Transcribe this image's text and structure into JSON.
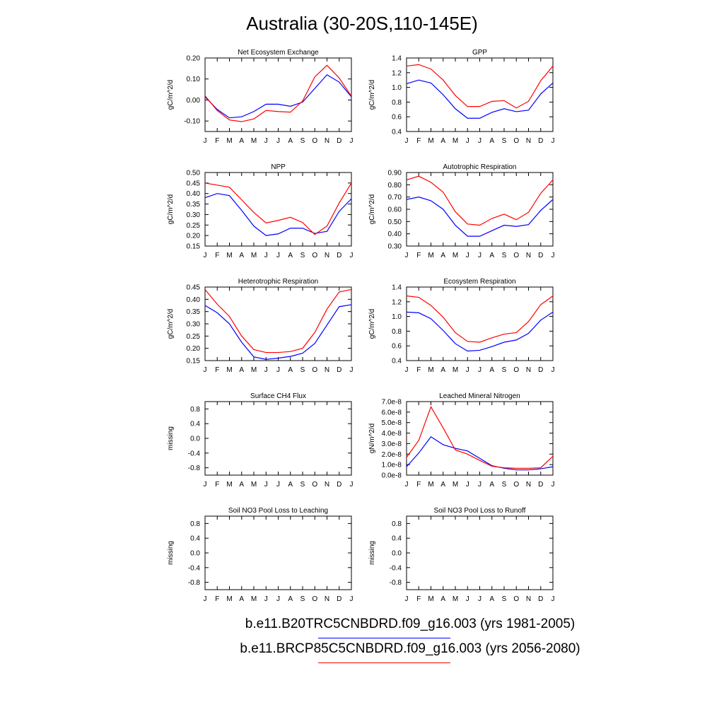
{
  "title": "Australia (30-20S,110-145E)",
  "months": [
    "J",
    "F",
    "M",
    "A",
    "M",
    "J",
    "J",
    "A",
    "S",
    "O",
    "N",
    "D",
    "J"
  ],
  "colors": {
    "control": "#0000ff",
    "future": "#ff0000",
    "axis": "#000000"
  },
  "legend": [
    {
      "label": "b.e11.B20TRC5CNBDRD.f09_g16.003 (yrs 1981-2005)",
      "color": "#0000ff"
    },
    {
      "label": "b.e11.BRCP85C5CNBDRD.f09_g16.003 (yrs 2056-2080)",
      "color": "#ff0000"
    }
  ],
  "chart_data": [
    {
      "type": "line",
      "title": "Net Ecosystem Exchange",
      "ylabel": "gC/m^2/d",
      "ylim": [
        -0.15,
        0.2
      ],
      "yticks": [
        -0.1,
        0.0,
        0.1,
        0.2
      ],
      "ytick_labels": [
        "-0.10",
        "0.00",
        "0.10",
        "0.20"
      ],
      "series": [
        {
          "values": [
            0.015,
            -0.045,
            -0.085,
            -0.08,
            -0.055,
            -0.02,
            -0.02,
            -0.03,
            -0.01,
            0.055,
            0.12,
            0.085,
            0.015
          ]
        },
        {
          "values": [
            0.02,
            -0.05,
            -0.095,
            -0.103,
            -0.09,
            -0.05,
            -0.055,
            -0.058,
            -0.005,
            0.11,
            0.165,
            0.105,
            0.018
          ]
        }
      ]
    },
    {
      "type": "line",
      "title": "GPP",
      "ylabel": "gC/m^2/d",
      "ylim": [
        0.4,
        1.4
      ],
      "yticks": [
        0.4,
        0.6,
        0.8,
        1.0,
        1.2,
        1.4
      ],
      "ytick_labels": [
        "0.4",
        "0.6",
        "0.8",
        "1.0",
        "1.2",
        "1.4"
      ],
      "series": [
        {
          "values": [
            1.05,
            1.1,
            1.06,
            0.9,
            0.71,
            0.58,
            0.58,
            0.66,
            0.71,
            0.67,
            0.69,
            0.91,
            1.06
          ]
        },
        {
          "values": [
            1.29,
            1.31,
            1.25,
            1.1,
            0.89,
            0.74,
            0.74,
            0.81,
            0.82,
            0.72,
            0.81,
            1.09,
            1.29
          ]
        }
      ]
    },
    {
      "type": "line",
      "title": "NPP",
      "ylabel": "gC/m^2/d",
      "ylim": [
        0.15,
        0.5
      ],
      "yticks": [
        0.15,
        0.2,
        0.25,
        0.3,
        0.35,
        0.4,
        0.45,
        0.5
      ],
      "ytick_labels": [
        "0.15",
        "0.20",
        "0.25",
        "0.30",
        "0.35",
        "0.40",
        "0.45",
        "0.50"
      ],
      "series": [
        {
          "values": [
            0.38,
            0.4,
            0.39,
            0.32,
            0.245,
            0.2,
            0.208,
            0.235,
            0.235,
            0.21,
            0.22,
            0.315,
            0.375
          ]
        },
        {
          "values": [
            0.45,
            0.44,
            0.43,
            0.37,
            0.31,
            0.26,
            0.272,
            0.287,
            0.262,
            0.205,
            0.245,
            0.355,
            0.45
          ]
        }
      ]
    },
    {
      "type": "line",
      "title": "Autotrophic Respiration",
      "ylabel": "gC/m^2/d",
      "ylim": [
        0.3,
        0.9
      ],
      "yticks": [
        0.3,
        0.4,
        0.5,
        0.6,
        0.7,
        0.8,
        0.9
      ],
      "ytick_labels": [
        "0.30",
        "0.40",
        "0.50",
        "0.60",
        "0.70",
        "0.80",
        "0.90"
      ],
      "series": [
        {
          "values": [
            0.68,
            0.7,
            0.67,
            0.6,
            0.47,
            0.38,
            0.38,
            0.425,
            0.47,
            0.46,
            0.475,
            0.59,
            0.68
          ]
        },
        {
          "values": [
            0.84,
            0.87,
            0.82,
            0.74,
            0.58,
            0.48,
            0.47,
            0.525,
            0.56,
            0.515,
            0.575,
            0.73,
            0.84
          ]
        }
      ]
    },
    {
      "type": "line",
      "title": "Heterotrophic Respiration",
      "ylabel": "gC/m^2/d",
      "ylim": [
        0.15,
        0.45
      ],
      "yticks": [
        0.15,
        0.2,
        0.25,
        0.3,
        0.35,
        0.4,
        0.45
      ],
      "ytick_labels": [
        "0.15",
        "0.20",
        "0.25",
        "0.30",
        "0.35",
        "0.40",
        "0.45"
      ],
      "series": [
        {
          "values": [
            0.375,
            0.345,
            0.3,
            0.225,
            0.165,
            0.155,
            0.16,
            0.167,
            0.18,
            0.22,
            0.295,
            0.37,
            0.378
          ]
        },
        {
          "values": [
            0.44,
            0.38,
            0.33,
            0.25,
            0.195,
            0.183,
            0.183,
            0.187,
            0.2,
            0.265,
            0.36,
            0.43,
            0.44
          ]
        }
      ]
    },
    {
      "type": "line",
      "title": "Ecosystem Respiration",
      "ylabel": "gC/m^2/d",
      "ylim": [
        0.4,
        1.4
      ],
      "yticks": [
        0.4,
        0.6,
        0.8,
        1.0,
        1.2,
        1.4
      ],
      "ytick_labels": [
        "0.4",
        "0.6",
        "0.8",
        "1.0",
        "1.2",
        "1.4"
      ],
      "series": [
        {
          "values": [
            1.06,
            1.05,
            0.97,
            0.81,
            0.63,
            0.53,
            0.54,
            0.59,
            0.65,
            0.68,
            0.77,
            0.95,
            1.06
          ]
        },
        {
          "values": [
            1.28,
            1.26,
            1.15,
            0.99,
            0.78,
            0.66,
            0.65,
            0.71,
            0.76,
            0.78,
            0.93,
            1.16,
            1.28
          ]
        }
      ]
    },
    {
      "type": "line",
      "title": "Surface CH4 Flux",
      "ylabel": "missing",
      "ylim": [
        -1.0,
        1.0
      ],
      "yticks": [
        -0.8,
        -0.4,
        0.0,
        0.4,
        0.8
      ],
      "ytick_labels": [
        "-0.8",
        "-0.4",
        "0.0",
        "0.4",
        "0.8"
      ],
      "series": []
    },
    {
      "type": "line",
      "title": "Leached Mineral Nitrogen",
      "ylabel": "gN/m^2/d",
      "ylim": [
        0.0,
        7e-08
      ],
      "yticks": [
        0.0,
        1e-08,
        2e-08,
        3e-08,
        4e-08,
        5e-08,
        6e-08,
        7e-08
      ],
      "ytick_labels": [
        "0.0e-8",
        "1.0e-8",
        "2.0e-8",
        "3.0e-8",
        "4.0e-8",
        "5.0e-8",
        "6.0e-8",
        "7.0e-8"
      ],
      "series": [
        {
          "values": [
            8e-09,
            2.1e-08,
            3.65e-08,
            2.9e-08,
            2.55e-08,
            2.3e-08,
            1.6e-08,
            9e-09,
            6.5e-09,
            5e-09,
            5e-09,
            6e-09,
            8e-09
          ]
        },
        {
          "values": [
            1.7e-08,
            3.3e-08,
            6.5e-08,
            4.5e-08,
            2.4e-08,
            2e-08,
            1.4e-08,
            8.5e-09,
            7e-09,
            6.5e-09,
            6.5e-09,
            7e-09,
            1.8e-08
          ]
        }
      ]
    },
    {
      "type": "line",
      "title": "Soil NO3 Pool Loss to Leaching",
      "ylabel": "missing",
      "ylim": [
        -1.0,
        1.0
      ],
      "yticks": [
        -0.8,
        -0.4,
        0.0,
        0.4,
        0.8
      ],
      "ytick_labels": [
        "-0.8",
        "-0.4",
        "0.0",
        "0.4",
        "0.8"
      ],
      "series": []
    },
    {
      "type": "line",
      "title": "Soil NO3 Pool Loss to Runoff",
      "ylabel": "missing",
      "ylim": [
        -1.0,
        1.0
      ],
      "yticks": [
        -0.8,
        -0.4,
        0.0,
        0.4,
        0.8
      ],
      "ytick_labels": [
        "-0.8",
        "-0.4",
        "0.0",
        "0.4",
        "0.8"
      ],
      "series": []
    }
  ]
}
